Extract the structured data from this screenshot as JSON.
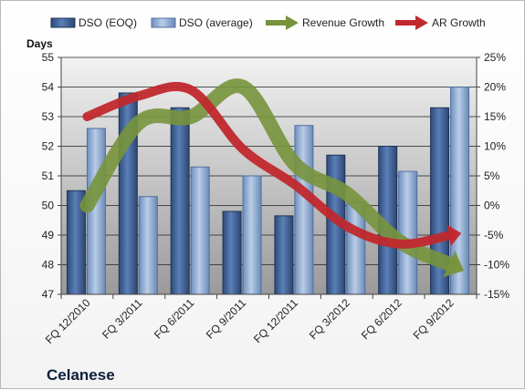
{
  "chart_data": {
    "type": "bar",
    "company_label": "Celanese",
    "y_left_label": "Days",
    "categories": [
      "FQ 12/2010",
      "FQ 3/2011",
      "FQ 6/2011",
      "FQ 9/2011",
      "FQ 12/2011",
      "FQ 3/2012",
      "FQ 6/2012",
      "FQ 9/2012"
    ],
    "ylim_left": [
      47,
      55
    ],
    "yticks_left": [
      "47",
      "48",
      "49",
      "50",
      "51",
      "52",
      "53",
      "54",
      "55"
    ],
    "ylim_right": [
      -15,
      25
    ],
    "yticks_right": [
      "-15%",
      "-10%",
      "-5%",
      "0%",
      "5%",
      "10%",
      "15%",
      "20%",
      "25%"
    ],
    "grid": true,
    "legend_position": "top",
    "series": [
      {
        "name": "DSO (EOQ)",
        "axis": "left",
        "kind": "bar",
        "color": "#4a6fa5",
        "values": [
          50.5,
          53.8,
          53.3,
          49.8,
          49.65,
          51.7,
          52.0,
          53.3
        ]
      },
      {
        "name": "DSO (average)",
        "axis": "left",
        "kind": "bar",
        "color": "#95b3d7",
        "values": [
          52.6,
          50.3,
          51.3,
          51.0,
          52.7,
          50.1,
          51.15,
          54.0
        ]
      },
      {
        "name": "Revenue Growth",
        "axis": "right",
        "kind": "arrow-line",
        "color": "#77933c",
        "values": [
          0,
          14,
          15,
          20,
          7,
          2,
          -6,
          -10
        ]
      },
      {
        "name": "AR Growth",
        "axis": "right",
        "kind": "arrow-line",
        "color": "#c0282d",
        "values": [
          15,
          18.5,
          19.5,
          9.5,
          3.5,
          -3.5,
          -6.5,
          -5
        ]
      }
    ]
  }
}
